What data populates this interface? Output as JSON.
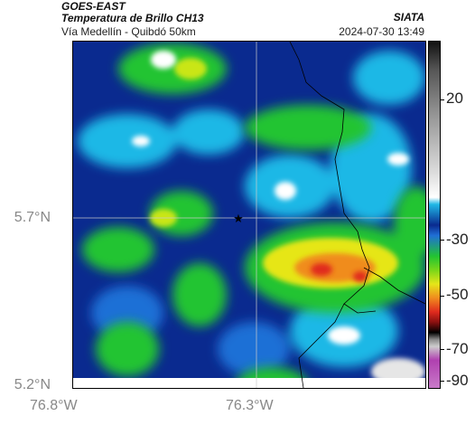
{
  "header": {
    "line1": "GOES-EAST",
    "line2": "Temperatura de Brillo CH13",
    "line3": "Vía Medellín - Quibdó 50km",
    "agency": "SIATA",
    "timestamp": "2024-07-30 13:49"
  },
  "axes": {
    "lat_ticks": [
      "5.7°N",
      "5.2°N"
    ],
    "lon_ticks": [
      "76.8°W",
      "76.3°W"
    ]
  },
  "colorbar": {
    "ticks": [
      "20",
      "-30",
      "-50",
      "-70",
      "-90"
    ]
  },
  "legend_colors": {
    "warm_surface": "#ffffff",
    "dark_blue": "#0a2a8f",
    "light_blue": "#1fb8e6",
    "green": "#22c432",
    "yellow": "#e6e619",
    "orange": "#f08c1e",
    "red": "#e02b1e"
  },
  "map": {
    "marker_icon": "star-icon"
  }
}
